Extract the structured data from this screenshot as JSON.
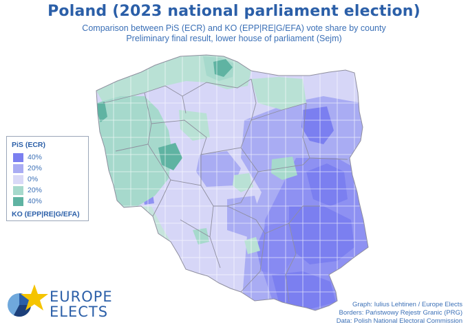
{
  "title": "Poland (2023 national parliament election)",
  "subtitle_line1": "Comparison between PiS (ECR) and KO (EPP|RE|G/EFA) vote share by county",
  "subtitle_line2": "Preliminary final result, lower house of parliament (Sejm)",
  "legend": {
    "top_party": "PiS (ECR)",
    "bottom_party": "KO (EPP|RE|G/EFA)",
    "items": [
      {
        "label": "40%",
        "color": "#7b7ff0"
      },
      {
        "label": "20%",
        "color": "#a9acf3"
      },
      {
        "label": "0%",
        "color": "#d9d9f7"
      },
      {
        "label": "20%",
        "color": "#a6d9cc"
      },
      {
        "label": "40%",
        "color": "#5fb3a2"
      }
    ]
  },
  "logo": {
    "line1": "EUROPE",
    "line2": "ELECTS",
    "star_color": "#f5c400",
    "circle_colors": [
      "#2b5fa8",
      "#6fa8dc",
      "#1c3f7a"
    ]
  },
  "credits": [
    "Graph: Iulius Lehtinen / Europe Elects",
    "Borders: Państwowy Rejestr Granic (PRG)",
    "Data: Polish National Electoral Commission"
  ],
  "palette": {
    "border": "#8e8e9e",
    "pis_strong": "#7b7ff0",
    "pis_mid": "#9598f1",
    "pis_light": "#c5c7f6",
    "neutral": "#d9d9f7",
    "ko_light": "#b9e1d5",
    "ko_mid": "#a6d9cc",
    "ko_strong": "#5fb3a2"
  }
}
